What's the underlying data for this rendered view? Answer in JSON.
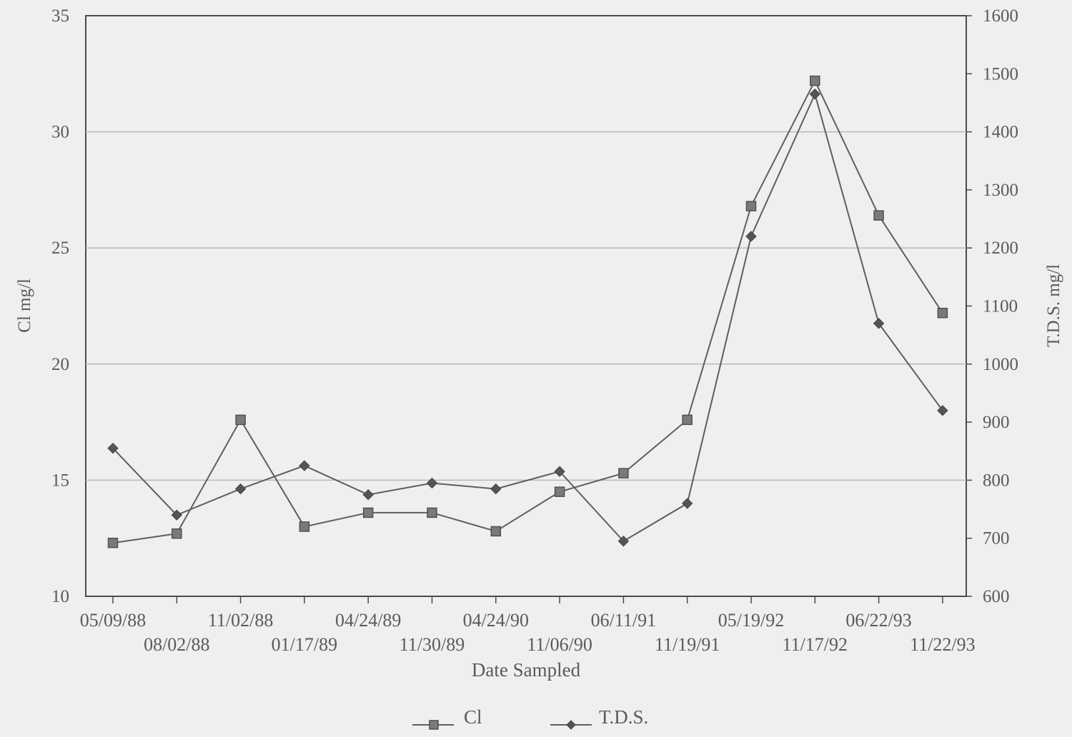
{
  "chart_data": {
    "type": "line",
    "xlabel": "Date Sampled",
    "ylabel_left": "Cl mg/l",
    "ylabel_right": "T.D.S. mg/l",
    "ylim_left": [
      10,
      35
    ],
    "ylim_right": [
      600,
      1600
    ],
    "yticks_left": [
      10,
      15,
      20,
      25,
      30,
      35
    ],
    "yticks_right": [
      600,
      700,
      800,
      900,
      1000,
      1100,
      1200,
      1300,
      1400,
      1500,
      1600
    ],
    "grid": "horizontal",
    "legend": "bottom",
    "categories": [
      "05/09/88",
      "08/02/88",
      "11/02/88",
      "01/17/89",
      "04/24/89",
      "11/30/89",
      "04/24/90",
      "11/06/90",
      "06/11/91",
      "11/19/91",
      "05/19/92",
      "11/17/92",
      "06/22/93",
      "11/22/93"
    ],
    "series": [
      {
        "name": "Cl",
        "axis": "left",
        "marker": "square",
        "values": [
          12.3,
          12.7,
          17.6,
          13.0,
          13.6,
          13.6,
          12.8,
          14.5,
          15.3,
          17.6,
          26.8,
          32.2,
          26.4,
          22.2
        ]
      },
      {
        "name": "T.D.S.",
        "axis": "right",
        "marker": "diamond",
        "values": [
          855,
          740,
          785,
          825,
          775,
          795,
          785,
          815,
          695,
          760,
          1220,
          1465,
          1070,
          920
        ]
      }
    ]
  }
}
